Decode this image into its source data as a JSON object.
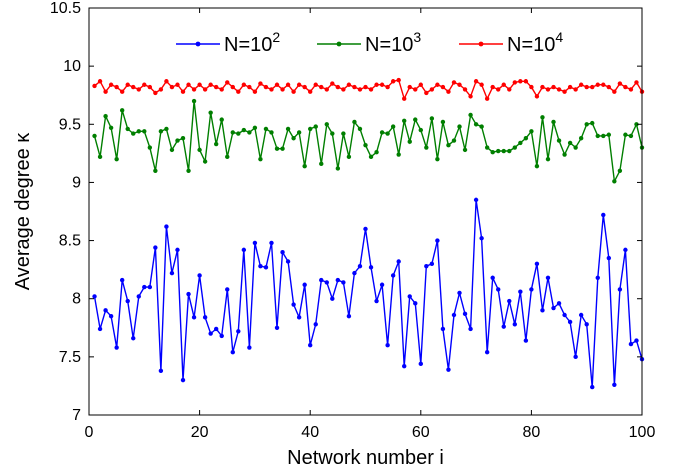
{
  "chart_data": {
    "type": "line",
    "xlabel": "Network number i",
    "ylabel": "Average degree  κ",
    "xlim": [
      0,
      100
    ],
    "ylim": [
      7,
      10.5
    ],
    "xticks": [
      0,
      20,
      40,
      60,
      80,
      100
    ],
    "yticks": [
      7,
      7.5,
      8,
      8.5,
      9,
      9.5,
      10,
      10.5
    ],
    "xtick_labels": [
      "0",
      "20",
      "40",
      "60",
      "80",
      "100"
    ],
    "ytick_labels": [
      "7",
      "7.5",
      "8",
      "8.5",
      "9",
      "9.5",
      "10",
      "10.5"
    ],
    "grid": false,
    "legend_position": "top",
    "x": [
      1,
      2,
      3,
      4,
      5,
      6,
      7,
      8,
      9,
      10,
      11,
      12,
      13,
      14,
      15,
      16,
      17,
      18,
      19,
      20,
      21,
      22,
      23,
      24,
      25,
      26,
      27,
      28,
      29,
      30,
      31,
      32,
      33,
      34,
      35,
      36,
      37,
      38,
      39,
      40,
      41,
      42,
      43,
      44,
      45,
      46,
      47,
      48,
      49,
      50,
      51,
      52,
      53,
      54,
      55,
      56,
      57,
      58,
      59,
      60,
      61,
      62,
      63,
      64,
      65,
      66,
      67,
      68,
      69,
      70,
      71,
      72,
      73,
      74,
      75,
      76,
      77,
      78,
      79,
      80,
      81,
      82,
      83,
      84,
      85,
      86,
      87,
      88,
      89,
      90,
      91,
      92,
      93,
      94,
      95,
      96,
      97,
      98,
      99,
      100
    ],
    "series": [
      {
        "name": "N=10",
        "name_sup": "2",
        "color": "#0000ff",
        "values": [
          8.02,
          7.74,
          7.9,
          7.85,
          7.58,
          8.16,
          7.98,
          7.66,
          8.02,
          8.1,
          8.1,
          8.44,
          7.38,
          8.62,
          8.22,
          8.42,
          7.3,
          8.04,
          7.84,
          8.2,
          7.84,
          7.7,
          7.74,
          7.68,
          8.08,
          7.54,
          7.72,
          8.42,
          7.58,
          8.48,
          8.28,
          8.27,
          8.48,
          7.75,
          8.4,
          8.32,
          7.95,
          7.84,
          8.12,
          7.6,
          7.78,
          8.16,
          8.14,
          8.0,
          8.16,
          8.14,
          7.85,
          8.22,
          8.28,
          8.6,
          8.27,
          7.98,
          8.12,
          7.6,
          8.2,
          8.32,
          7.42,
          8.02,
          7.96,
          7.44,
          8.28,
          8.3,
          8.5,
          7.74,
          7.39,
          7.86,
          8.05,
          7.87,
          7.74,
          8.85,
          8.52,
          7.54,
          8.18,
          8.08,
          7.76,
          7.98,
          7.78,
          8.06,
          7.64,
          8.08,
          8.3,
          7.9,
          8.18,
          7.92,
          7.96,
          7.86,
          7.8,
          7.5,
          7.86,
          7.78,
          7.24,
          8.18,
          8.72,
          8.35,
          7.26,
          8.08,
          8.42,
          7.61,
          7.64,
          7.48
        ]
      },
      {
        "name": "N=10",
        "name_sup": "3",
        "color": "#007f00",
        "values": [
          9.4,
          9.22,
          9.57,
          9.47,
          9.2,
          9.62,
          9.46,
          9.42,
          9.44,
          9.44,
          9.3,
          9.1,
          9.44,
          9.46,
          9.28,
          9.36,
          9.38,
          9.1,
          9.7,
          9.28,
          9.18,
          9.6,
          9.33,
          9.54,
          9.22,
          9.43,
          9.42,
          9.45,
          9.43,
          9.47,
          9.2,
          9.46,
          9.43,
          9.29,
          9.29,
          9.46,
          9.38,
          9.43,
          9.14,
          9.46,
          9.48,
          9.16,
          9.5,
          9.42,
          9.12,
          9.42,
          9.22,
          9.52,
          9.46,
          9.32,
          9.22,
          9.26,
          9.43,
          9.42,
          9.48,
          9.24,
          9.53,
          9.35,
          9.54,
          9.45,
          9.3,
          9.55,
          9.2,
          9.52,
          9.32,
          9.36,
          9.48,
          9.28,
          9.58,
          9.5,
          9.48,
          9.3,
          9.26,
          9.27,
          9.27,
          9.27,
          9.3,
          9.34,
          9.38,
          9.44,
          9.14,
          9.56,
          9.2,
          9.52,
          9.36,
          9.24,
          9.34,
          9.3,
          9.38,
          9.5,
          9.51,
          9.4,
          9.4,
          9.41,
          9.01,
          9.1,
          9.41,
          9.4,
          9.5,
          9.3
        ]
      },
      {
        "name": "N=10",
        "name_sup": "4",
        "color": "#ff0000",
        "values": [
          9.83,
          9.87,
          9.78,
          9.84,
          9.82,
          9.78,
          9.84,
          9.82,
          9.8,
          9.84,
          9.82,
          9.77,
          9.8,
          9.87,
          9.82,
          9.84,
          9.78,
          9.84,
          9.8,
          9.84,
          9.8,
          9.84,
          9.82,
          9.8,
          9.86,
          9.82,
          9.78,
          9.84,
          9.82,
          9.78,
          9.85,
          9.82,
          9.8,
          9.84,
          9.8,
          9.84,
          9.78,
          9.84,
          9.82,
          9.78,
          9.84,
          9.82,
          9.8,
          9.85,
          9.82,
          9.8,
          9.84,
          9.82,
          9.8,
          9.82,
          9.8,
          9.84,
          9.84,
          9.82,
          9.87,
          9.88,
          9.72,
          9.82,
          9.8,
          9.84,
          9.77,
          9.8,
          9.84,
          9.82,
          9.78,
          9.86,
          9.84,
          9.8,
          9.74,
          9.87,
          9.84,
          9.72,
          9.82,
          9.8,
          9.84,
          9.8,
          9.86,
          9.87,
          9.87,
          9.82,
          9.74,
          9.82,
          9.8,
          9.82,
          9.8,
          9.78,
          9.82,
          9.8,
          9.84,
          9.82,
          9.82,
          9.84,
          9.84,
          9.82,
          9.78,
          9.85,
          9.82,
          9.8,
          9.86,
          9.78
        ]
      }
    ]
  }
}
